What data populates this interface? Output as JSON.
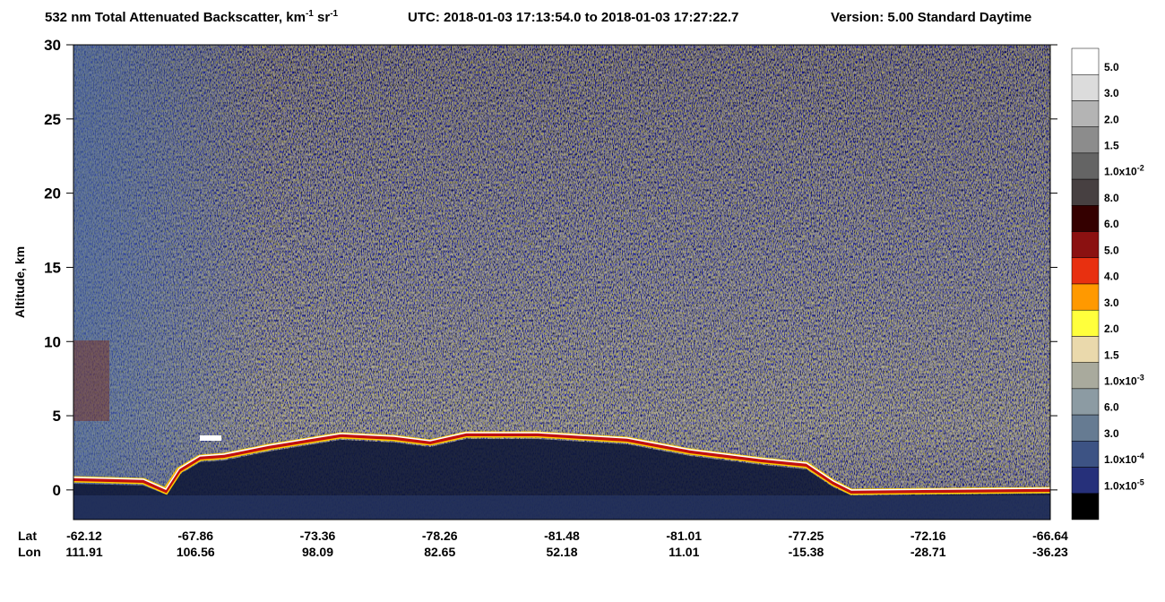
{
  "chart_data": {
    "type": "curtain",
    "title_parts": [
      "532 nm Total Attenuated Backscatter, km",
      "-1",
      " sr",
      "-1"
    ],
    "utc": "UTC:  2018-01-03 17:13:54.0  to  2018-01-03 17:27:22.7",
    "version": "Version: 5.00  Standard  Daytime",
    "ylabel": "Altitude, km",
    "ylim": [
      -2,
      30
    ],
    "yticks": [
      0,
      5,
      10,
      15,
      20,
      25,
      30
    ],
    "x_rows": [
      {
        "name": "Lat",
        "values": [
          -62.12,
          -67.86,
          -73.36,
          -78.26,
          -81.48,
          -81.01,
          -77.25,
          -72.16,
          -66.64
        ]
      },
      {
        "name": "Lon",
        "values": [
          111.91,
          106.56,
          98.09,
          82.65,
          52.18,
          11.01,
          -15.38,
          -28.71,
          -36.23
        ]
      }
    ],
    "colorbar": {
      "colors": [
        "#ffffff",
        "#dcdcdc",
        "#b4b4b4",
        "#8c8c8c",
        "#646464",
        "#474041",
        "#340000",
        "#8b1111",
        "#e83010",
        "#ff9900",
        "#ffff3c",
        "#ead9ac",
        "#a9aa9d",
        "#8c9ba3",
        "#667b92",
        "#3d5384",
        "#26307a",
        "#000000"
      ],
      "labels": [
        {
          "base": "5.0"
        },
        {
          "base": "3.0"
        },
        {
          "base": "2.0"
        },
        {
          "base": "1.5"
        },
        {
          "base": "1.0x10",
          "exp": "-2"
        },
        {
          "base": "8.0"
        },
        {
          "base": "6.0"
        },
        {
          "base": "5.0"
        },
        {
          "base": "4.0"
        },
        {
          "base": "3.0"
        },
        {
          "base": "2.0"
        },
        {
          "base": "1.5"
        },
        {
          "base": "1.0x10",
          "exp": "-3"
        },
        {
          "base": "6.0"
        },
        {
          "base": "3.0"
        },
        {
          "base": "1.0x10",
          "exp": "-4"
        },
        {
          "base": "1.0x10",
          "exp": "-5"
        }
      ]
    }
  }
}
